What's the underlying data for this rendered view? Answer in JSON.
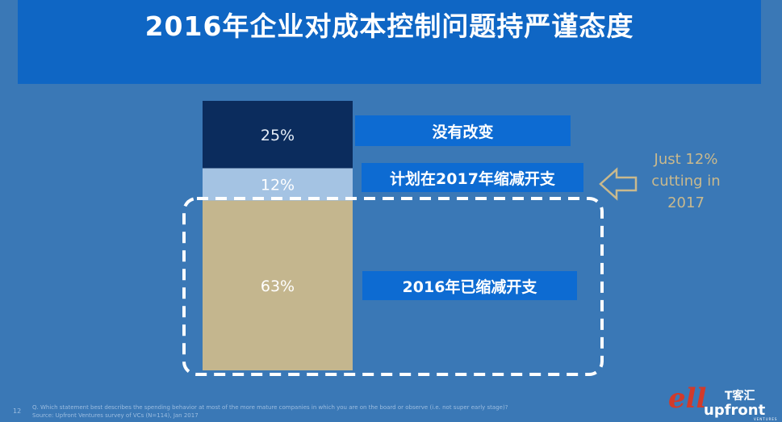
{
  "title": "2016年企业对成本控制问题持严谨态度",
  "chart_data": {
    "type": "bar",
    "stacked": true,
    "categories": [
      "没有改变",
      "计划在2017年缩减开支",
      "2016年已缩减开支"
    ],
    "values": [
      25,
      12,
      63
    ],
    "value_labels": [
      "25%",
      "12%",
      "63%"
    ],
    "unit": "%",
    "colors": [
      "#0b2c5d",
      "#a4c3e3",
      "#c4b68e"
    ],
    "ylim": [
      0,
      100
    ]
  },
  "callout": {
    "line1": "Just 12%",
    "line2": "cutting in",
    "line3": "2017"
  },
  "footnote": {
    "question": "Q. Which statement best describes the spending behavior at most of the more mature companies in which you are on the board or observe (i.e. not super early stage)?",
    "source": "Source: Upfront Ventures survey of VCs (N=114), Jan 2017"
  },
  "page_number": "12",
  "logo": {
    "script": "ell",
    "cn": "T客汇",
    "brand": "upfront",
    "sub": "VENTURES"
  },
  "colors": {
    "background": "#3a78b6",
    "title_bar": "#0f66c4",
    "label_box": "#0d6bd2",
    "callout": "#c9b98d"
  }
}
